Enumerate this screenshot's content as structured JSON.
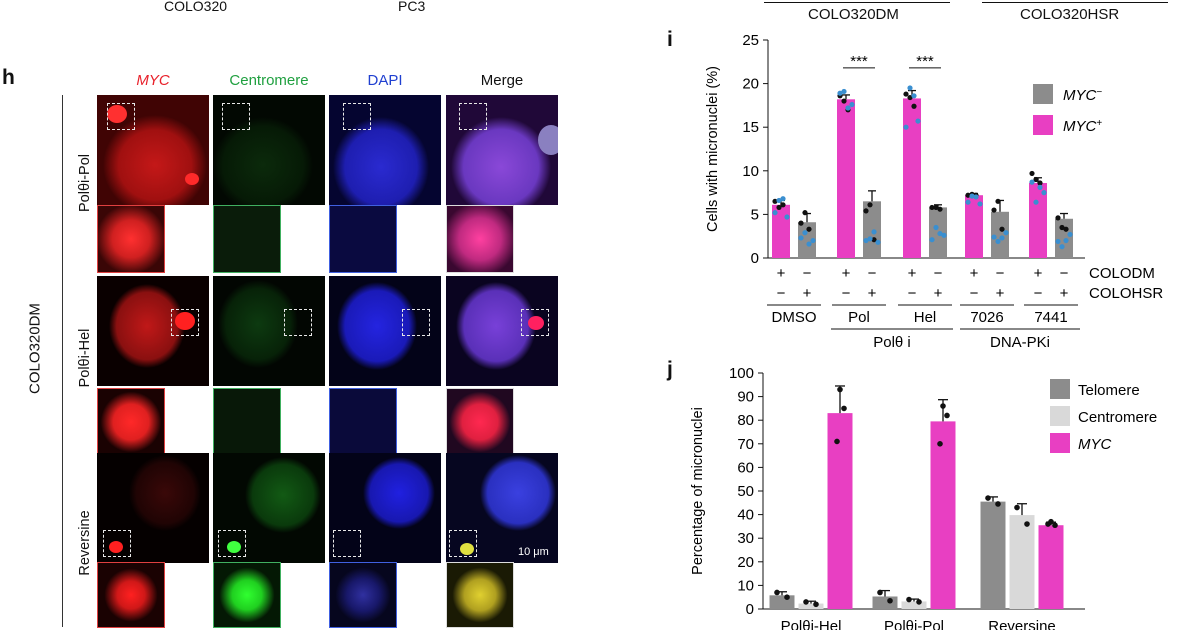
{
  "top_labels": [
    "COLO320",
    "PC3",
    "COLO320DM",
    "COLO320HSR"
  ],
  "panel_h": {
    "letter": "h",
    "columns": [
      "MYC",
      "Centromere",
      "DAPI",
      "Merge"
    ],
    "group_label": "COLO320DM",
    "rows": [
      "Polθi-Pol",
      "Polθi-Hel",
      "Reversine"
    ],
    "scale_bar": "10 μm"
  },
  "panel_i": {
    "letter": "i",
    "condition_rows": [
      "COLODM",
      "COLOHSR"
    ],
    "group_labels": [
      "Polθ i",
      "DNA-PKi"
    ],
    "legend": [
      {
        "label": "MYC",
        "sup": "−",
        "color": "#8c8c8c"
      },
      {
        "label": "MYC",
        "sup": "+",
        "color": "#e83fc2"
      }
    ],
    "significance": [
      "***",
      "***"
    ]
  },
  "panel_j": {
    "letter": "j",
    "legend": [
      {
        "label": "Telomere",
        "color": "#8c8c8c"
      },
      {
        "label": "Centromere",
        "color": "#d9d9d9"
      },
      {
        "label": "MYC",
        "color": "#e83fc2"
      }
    ]
  },
  "chart_data": [
    {
      "type": "bar",
      "ylabel": "Cells with micronuclei (%)",
      "ylim": [
        0,
        25
      ],
      "yticks": [
        0,
        5,
        10,
        15,
        20,
        25
      ],
      "categories": [
        "DMSO",
        "Pol",
        "Hel",
        "7026",
        "7441"
      ],
      "plus_minus": {
        "COLODM": [
          "+",
          "−",
          "+",
          "−",
          "+",
          "−",
          "+",
          "−",
          "+",
          "−"
        ],
        "COLOHSR": [
          "−",
          "+",
          "−",
          "+",
          "−",
          "+",
          "−",
          "+",
          "−",
          "+"
        ]
      },
      "series": [
        {
          "name": "MYC−",
          "values": [
            4.1,
            6.5,
            5.8,
            5.3,
            4.5
          ],
          "errors": [
            1.0,
            1.2,
            0.3,
            1.3,
            0.6
          ]
        },
        {
          "name": "MYC+",
          "values": [
            6.1,
            18.2,
            18.3,
            7.2,
            8.6
          ],
          "errors": [
            0.5,
            0.5,
            0.9,
            0.2,
            0.6
          ]
        }
      ],
      "points": {
        "MYC+": [
          [
            6.5,
            5.8,
            6.1,
            4.7,
            5.2,
            6.6,
            6.8
          ],
          [
            18.6,
            18.0,
            17.0,
            17.6,
            18.9,
            19.1,
            17.2
          ],
          [
            18.8,
            18.4,
            17.4,
            15.7,
            15.0,
            19.5,
            18.6
          ],
          [
            7.2,
            7.3,
            7.2,
            6.2,
            6.4,
            7.1,
            7.0
          ],
          [
            9.7,
            9.0,
            8.6,
            7.5,
            8.7,
            6.4,
            8.1
          ]
        ],
        "MYC−": [
          [
            4.0,
            5.2,
            3.3,
            2.0,
            2.3,
            2.9,
            1.6
          ],
          [
            5.4,
            6.1,
            2.1,
            1.8,
            2.0,
            2.2,
            3.0
          ],
          [
            5.8,
            5.8,
            5.6,
            2.6,
            2.1,
            3.5,
            2.8
          ],
          [
            5.5,
            6.5,
            3.3,
            2.9,
            2.4,
            1.9,
            2.3
          ],
          [
            4.6,
            3.5,
            3.3,
            2.7,
            1.9,
            1.3,
            2.0
          ]
        ]
      }
    },
    {
      "type": "bar",
      "ylabel": "Percentage of micronuclei",
      "ylim": [
        0,
        100
      ],
      "yticks": [
        0,
        10,
        20,
        30,
        40,
        50,
        60,
        70,
        80,
        90,
        100
      ],
      "categories": [
        "Polθi-Hel",
        "Polθi-Pol",
        "Reversine"
      ],
      "series": [
        {
          "name": "Telomere",
          "values": [
            5.8,
            5.3,
            45.5
          ],
          "errors": [
            1.5,
            2.5,
            2.0
          ]
        },
        {
          "name": "Centromere",
          "values": [
            2.3,
            3.2,
            39.8
          ],
          "errors": [
            1.0,
            1.0,
            4.8
          ]
        },
        {
          "name": "MYC",
          "values": [
            83.0,
            79.5,
            35.5
          ],
          "errors": [
            11.5,
            9.2,
            1.3
          ]
        }
      ],
      "points": {
        "Telomere": [
          [
            7.0,
            5.0
          ],
          [
            7.0,
            3.5
          ],
          [
            47.0,
            44.5
          ]
        ],
        "Centromere": [
          [
            3.0,
            2.0
          ],
          [
            4.0,
            3.0
          ],
          [
            43.0,
            36.0
          ]
        ],
        "MYC": [
          [
            93.0,
            85.0,
            71.0
          ],
          [
            86.0,
            82.0,
            70.0
          ],
          [
            37.0,
            35.5,
            36.0
          ]
        ]
      }
    }
  ]
}
